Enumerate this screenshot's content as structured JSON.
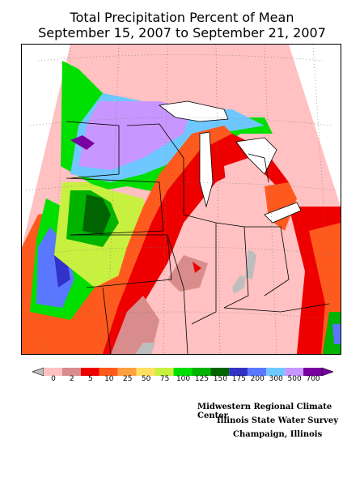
{
  "title": {
    "line1": "Total Precipitation Percent of Mean",
    "line2": "September 15, 2007 to September 21, 2007"
  },
  "legend": {
    "labels": [
      "0",
      "2",
      "5",
      "10",
      "25",
      "50",
      "75",
      "100",
      "125",
      "150",
      "175",
      "200",
      "300",
      "500",
      "700"
    ],
    "colors": {
      "below0": "#bdbdbd",
      "c0": "#ffc1c1",
      "c2": "#d98c8c",
      "c5": "#ee0000",
      "c10": "#ff5a1e",
      "c25": "#ffa040",
      "c50": "#ffe060",
      "c75": "#c8f040",
      "c100": "#00e000",
      "c125": "#00b400",
      "c150": "#006400",
      "c175": "#3232c8",
      "c200": "#5a78ff",
      "c300": "#6ec8ff",
      "c500": "#c896ff",
      "c700": "#7800a0"
    }
  },
  "credits": {
    "line1": "Midwestern Regional Climate Center",
    "line2": "Illinois State Water Survey",
    "line3": "Champaign, Illinois"
  }
}
